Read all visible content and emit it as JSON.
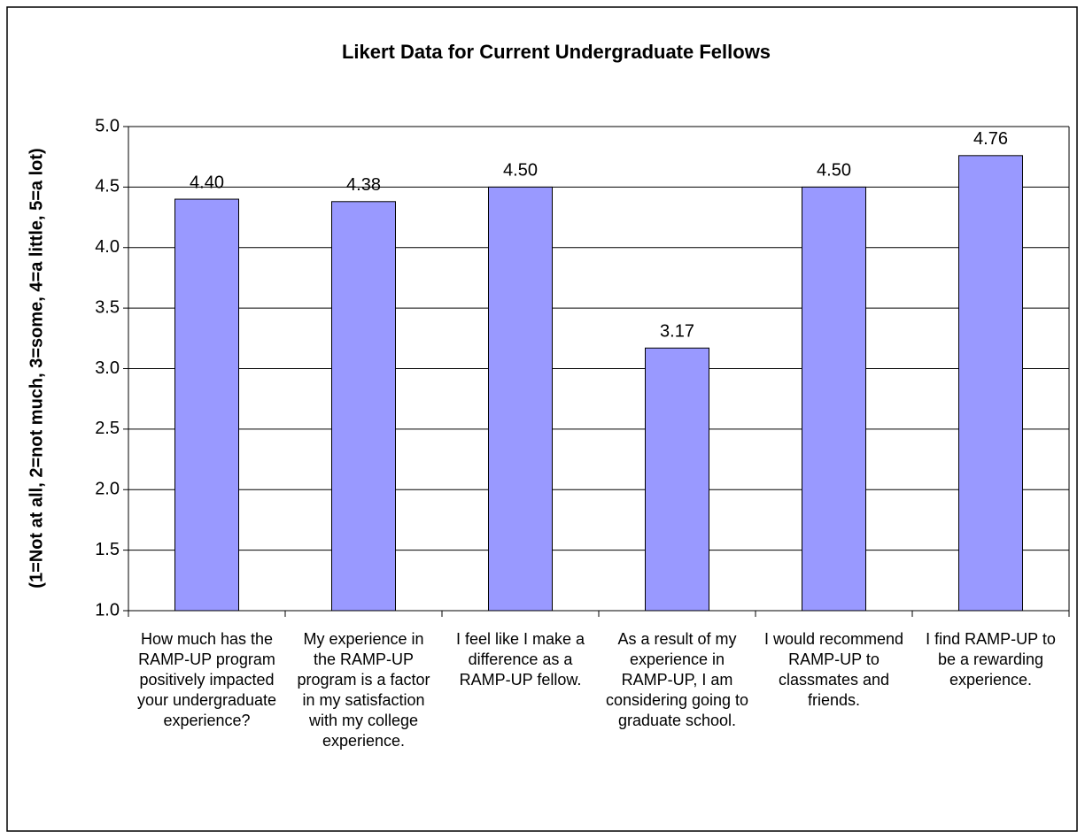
{
  "chart_data": {
    "type": "bar",
    "title": "Likert Data for Current Undergraduate Fellows",
    "y_label": "(1=Not at all, 2=not much, 3=some, 4=a little, 5=a lot)",
    "categories": [
      "How much has the RAMP-UP program positively impacted your undergraduate experience?",
      "My experience in the RAMP-UP program is a factor in my satisfaction with my college experience.",
      "I feel like I make a difference as a RAMP-UP fellow.",
      "As a result of my experience in RAMP-UP, I am considering going to graduate school.",
      "I would recommend RAMP-UP to classmates and friends.",
      "I find RAMP-UP to be a rewarding experience."
    ],
    "values": [
      4.4,
      4.38,
      4.5,
      3.17,
      4.5,
      4.76
    ],
    "value_labels": [
      "4.40",
      "4.38",
      "4.50",
      "3.17",
      "4.50",
      "4.76"
    ],
    "color": "#9999ff",
    "ylim": [
      1,
      5
    ],
    "yticks": [
      {
        "value": 1,
        "label": "1.0"
      },
      {
        "value": 1.5,
        "label": "1.5"
      },
      {
        "value": 2,
        "label": "2.0"
      },
      {
        "value": 2.5,
        "label": "2.5"
      },
      {
        "value": 3,
        "label": "3.0"
      },
      {
        "value": 3.5,
        "label": "3.5"
      },
      {
        "value": 4,
        "label": "4.0"
      },
      {
        "value": 4.5,
        "label": "4.5"
      },
      {
        "value": 5,
        "label": "5.0"
      }
    ],
    "grid": true
  }
}
